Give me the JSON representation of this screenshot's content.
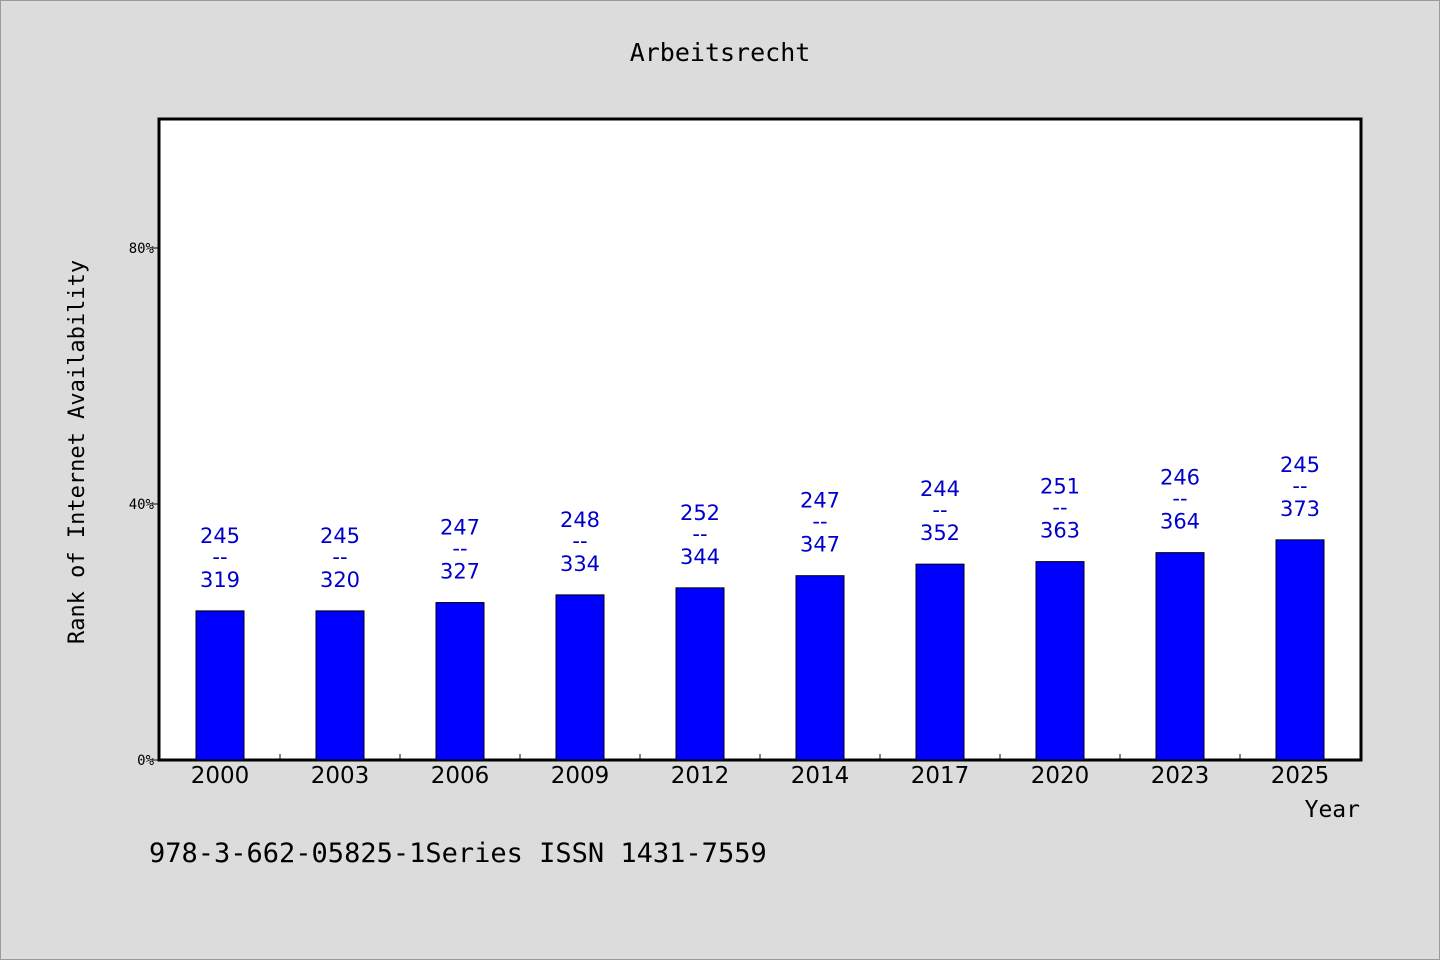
{
  "chart_data": {
    "type": "bar",
    "title": "Arbeitsrecht",
    "xlabel": "Year",
    "ylabel": "Rank of Internet Availability",
    "categories": [
      "2000",
      "2003",
      "2006",
      "2009",
      "2012",
      "2014",
      "2017",
      "2020",
      "2023",
      "2025"
    ],
    "values": [
      23.3,
      23.3,
      24.6,
      25.8,
      26.9,
      28.8,
      30.6,
      31.0,
      32.4,
      34.4
    ],
    "labels_top": [
      "245",
      "245",
      "247",
      "248",
      "252",
      "247",
      "244",
      "251",
      "246",
      "245"
    ],
    "labels_bottom": [
      "319",
      "320",
      "327",
      "334",
      "344",
      "347",
      "352",
      "363",
      "364",
      "373"
    ],
    "label_separator": "--",
    "ylim": [
      0,
      100
    ],
    "yticks": [
      0,
      40,
      80
    ],
    "ytick_labels": [
      "0%",
      "40%",
      "80%"
    ],
    "grid": false,
    "legend": "none",
    "colors": {
      "bar": "#0000ff",
      "label": "#0000cc",
      "background": "#dcdcdc",
      "plot_background": "#ffffff"
    }
  },
  "footer": {
    "text": "978-3-662-05825-1Series ISSN 1431-7559"
  }
}
